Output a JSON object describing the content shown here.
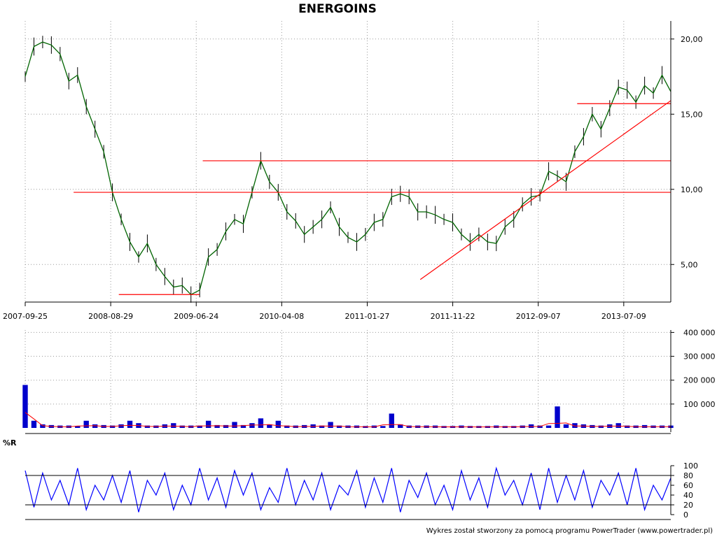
{
  "title": "ENERGOINS",
  "footer": "Wykres został stworzony za pomocą programu PowerTrader (www.powertrader.pl)",
  "panel_labels": {
    "oscillator": "%R"
  },
  "colors": {
    "price_line": "#006400",
    "price_bars": "#000000",
    "trend_lines": "#ff0000",
    "volume_bars": "#0000cc",
    "volume_avg": "#ff0000",
    "oscillator": "#0000ff",
    "grid": "#9a9a9a"
  },
  "chart_data": [
    {
      "type": "line",
      "name": "price",
      "title": "ENERGOINS",
      "x_ticks": [
        "2007-09-25",
        "2008-08-29",
        "2009-06-24",
        "2010-04-08",
        "2011-01-27",
        "2011-11-22",
        "2012-09-07",
        "2013-07-09"
      ],
      "y_ticks": [
        "5,00",
        "10,00",
        "15,00",
        "20,00"
      ],
      "ylim": [
        2.5,
        21.2
      ],
      "grid": true,
      "series": [
        {
          "values": [
            17.5,
            19.5,
            19.8,
            19.6,
            19.0,
            17.2,
            17.6,
            15.5,
            14.0,
            12.5,
            9.8,
            8.0,
            6.5,
            5.5,
            6.4,
            5.0,
            4.2,
            3.5,
            3.6,
            3.0,
            3.3,
            5.5,
            6.0,
            7.2,
            8.0,
            7.7,
            9.8,
            11.9,
            10.5,
            9.8,
            8.5,
            7.9,
            7.0,
            7.5,
            8.0,
            8.8,
            7.5,
            6.8,
            6.5,
            7.0,
            7.8,
            8.0,
            9.5,
            9.7,
            9.5,
            8.5,
            8.5,
            8.3,
            8.0,
            7.8,
            7.0,
            6.5,
            7.0,
            6.5,
            6.4,
            7.5,
            8.0,
            9.0,
            9.5,
            9.6,
            11.2,
            10.9,
            10.5,
            12.5,
            13.5,
            15.0,
            14.0,
            15.4,
            16.8,
            16.6,
            15.8,
            16.9,
            16.4,
            17.6,
            16.5
          ],
          "volume": [
            180000,
            30000,
            15000,
            12000,
            10000,
            10000,
            8000,
            30000,
            15000,
            12000,
            10000,
            15000,
            30000,
            20000,
            10000,
            10000,
            15000,
            20000,
            10000,
            10000,
            10000,
            30000,
            12000,
            12000,
            25000,
            12000,
            20000,
            40000,
            15000,
            30000,
            10000,
            10000,
            12000,
            15000,
            10000,
            25000,
            10000,
            10000,
            10000,
            8000,
            10000,
            8000,
            60000,
            15000,
            10000,
            10000,
            10000,
            10000,
            8000,
            8000,
            10000,
            8000,
            8000,
            8000,
            10000,
            8000,
            8000,
            10000,
            15000,
            10000,
            10000,
            90000,
            15000,
            20000,
            15000,
            12000,
            10000,
            15000,
            20000,
            10000,
            10000,
            12000,
            10000,
            10000,
            10000
          ],
          "williams_r": [
            90,
            15,
            85,
            30,
            70,
            20,
            95,
            10,
            60,
            30,
            80,
            25,
            90,
            5,
            70,
            40,
            85,
            10,
            60,
            20,
            95,
            30,
            75,
            15,
            90,
            40,
            85,
            10,
            55,
            25,
            95,
            20,
            70,
            30,
            85,
            10,
            60,
            40,
            90,
            15,
            75,
            25,
            95,
            5,
            70,
            35,
            85,
            20,
            60,
            10,
            90,
            30,
            75,
            15,
            95,
            40,
            70,
            20,
            85,
            10,
            95,
            25,
            80,
            30,
            90,
            15,
            70,
            40,
            85,
            20,
            95,
            10,
            60,
            30,
            75
          ]
        }
      ],
      "annotations": {
        "horizontal_lines": [
          {
            "y": 9.8,
            "x_from": 0.075,
            "x_to": 1.0
          },
          {
            "y": 11.9,
            "x_from": 0.275,
            "x_to": 1.0
          },
          {
            "y": 3.0,
            "x_from": 0.145,
            "x_to": 0.27
          },
          {
            "y": 15.7,
            "x_from": 0.855,
            "x_to": 1.0
          }
        ],
        "trend_line": {
          "from": {
            "x": 0.612,
            "y": 4.0
          },
          "to": {
            "x": 1.0,
            "y": 15.9
          }
        }
      }
    },
    {
      "type": "bar",
      "name": "volume",
      "y_ticks": [
        "100 000",
        "200 000",
        "300 000",
        "400 000"
      ],
      "ylim": [
        0,
        410000
      ],
      "grid": true
    },
    {
      "type": "line",
      "name": "%R",
      "y_ticks": [
        "0",
        "20",
        "40",
        "60",
        "80",
        "100"
      ],
      "ylim": [
        0,
        100
      ],
      "reference_lines": [
        20,
        80
      ],
      "grid": false
    }
  ]
}
